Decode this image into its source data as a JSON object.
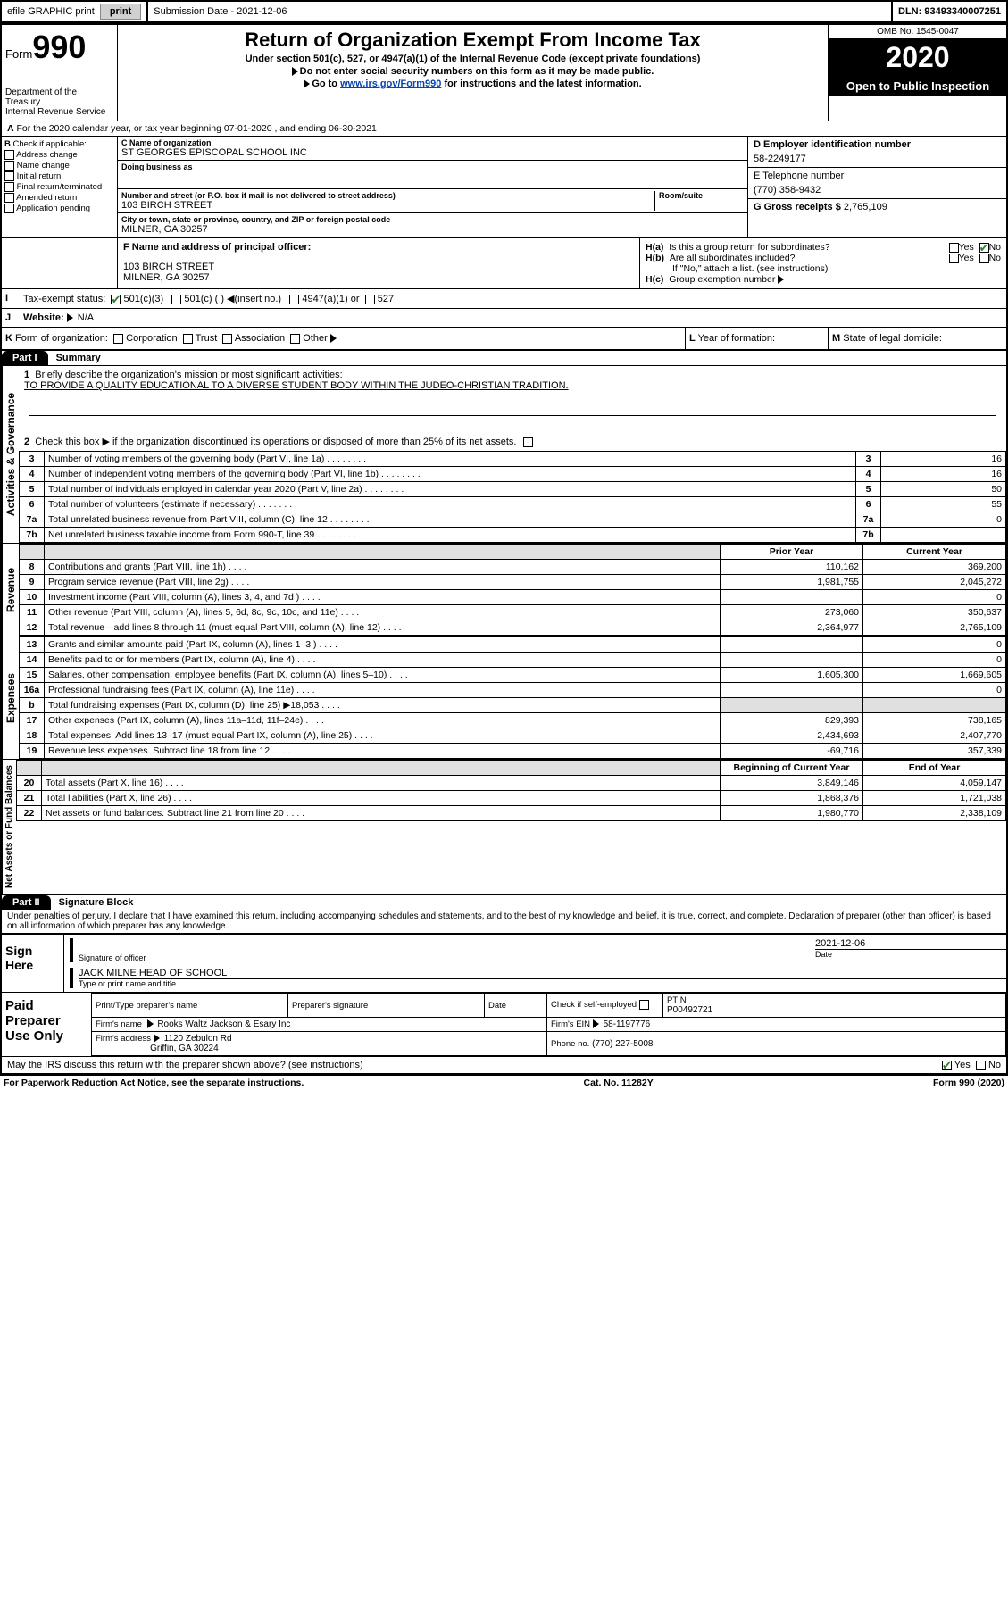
{
  "header": {
    "efile_label": "efile GRAPHIC print",
    "submission_label": "Submission Date - 2021-12-06",
    "dln_label": "DLN: 93493340007251"
  },
  "form_id": {
    "word": "Form",
    "number": "990",
    "dept": "Department of the Treasury",
    "irs": "Internal Revenue Service"
  },
  "title": {
    "main": "Return of Organization Exempt From Income Tax",
    "sub1": "Under section 501(c), 527, or 4947(a)(1) of the Internal Revenue Code (except private foundations)",
    "sub2": "Do not enter social security numbers on this form as it may be made public.",
    "sub3_pre": "Go to ",
    "sub3_link": "www.irs.gov/Form990",
    "sub3_post": " for instructions and the latest information.",
    "omb": "OMB No. 1545-0047",
    "year": "2020",
    "public": "Open to Public Inspection"
  },
  "period": "For the 2020 calendar year, or tax year beginning 07-01-2020    , and ending 06-30-2021",
  "check_if": {
    "label": "Check if applicable:",
    "items": [
      "Address change",
      "Name change",
      "Initial return",
      "Final return/terminated",
      "Amended return",
      "Application pending"
    ]
  },
  "org": {
    "name_label": "C Name of organization",
    "name": "ST GEORGES EPISCOPAL SCHOOL INC",
    "dba_label": "Doing business as",
    "addr_label": "Number and street (or P.O. box if mail is not delivered to street address)",
    "suite_label": "Room/suite",
    "addr": "103 BIRCH STREET",
    "city_label": "City or town, state or province, country, and ZIP or foreign postal code",
    "city": "MILNER, GA  30257"
  },
  "right": {
    "ein_label": "D Employer identification number",
    "ein": "58-2249177",
    "tel_label": "E Telephone number",
    "tel": "(770) 358-9432",
    "gross_label": "G Gross receipts $",
    "gross": "2,765,109"
  },
  "officer": {
    "label_f": "F  Name and address of principal officer:",
    "addr1": "103 BIRCH STREET",
    "addr2": "MILNER, GA  30257"
  },
  "h": {
    "ha": "Is this a group return for subordinates?",
    "hb": "Are all subordinates included?",
    "hb_note": "If \"No,\" attach a list. (see instructions)",
    "hc": "Group exemption number",
    "yes": "Yes",
    "no": "No"
  },
  "tax_status": {
    "label": "Tax-exempt status:",
    "c3": "501(c)(3)",
    "c_blank": "501(c) (   )",
    "insert": "(insert no.)",
    "a1": "4947(a)(1) or",
    "s527": "527"
  },
  "website_label": "Website:",
  "website": "N/A",
  "line_k": "Form of organization:",
  "k_opts": [
    "Corporation",
    "Trust",
    "Association",
    "Other"
  ],
  "line_l": "Year of formation:",
  "line_m": "State of legal domicile:",
  "part1": {
    "hdr": "Part I",
    "title": "Summary"
  },
  "part2": {
    "hdr": "Part II",
    "title": "Signature Block"
  },
  "summary": {
    "q1": "Briefly describe the organization's mission or most significant activities:",
    "mission": "TO PROVIDE A QUALITY EDUCATIONAL TO A DIVERSE STUDENT BODY WITHIN THE JUDEO-CHRISTIAN TRADITION.",
    "q2": "Check this box ▶       if the organization discontinued its operations or disposed of more than 25% of its net assets.",
    "rows_ag": [
      {
        "n": "3",
        "d": "Number of voting members of the governing body (Part VI, line 1a)",
        "v": "16"
      },
      {
        "n": "4",
        "d": "Number of independent voting members of the governing body (Part VI, line 1b)",
        "v": "16"
      },
      {
        "n": "5",
        "d": "Total number of individuals employed in calendar year 2020 (Part V, line 2a)",
        "v": "50"
      },
      {
        "n": "6",
        "d": "Total number of volunteers (estimate if necessary)",
        "v": "55"
      },
      {
        "n": "7a",
        "d": "Total unrelated business revenue from Part VIII, column (C), line 12",
        "v": "0"
      },
      {
        "n": "7b",
        "d": "Net unrelated business taxable income from Form 990-T, line 39",
        "v": ""
      }
    ],
    "col_prior": "Prior Year",
    "col_current": "Current Year",
    "col_begin": "Beginning of Current Year",
    "col_end": "End of Year",
    "revenue": [
      {
        "n": "8",
        "d": "Contributions and grants (Part VIII, line 1h)",
        "p": "110,162",
        "c": "369,200"
      },
      {
        "n": "9",
        "d": "Program service revenue (Part VIII, line 2g)",
        "p": "1,981,755",
        "c": "2,045,272"
      },
      {
        "n": "10",
        "d": "Investment income (Part VIII, column (A), lines 3, 4, and 7d )",
        "p": "",
        "c": "0"
      },
      {
        "n": "11",
        "d": "Other revenue (Part VIII, column (A), lines 5, 6d, 8c, 9c, 10c, and 11e)",
        "p": "273,060",
        "c": "350,637"
      },
      {
        "n": "12",
        "d": "Total revenue—add lines 8 through 11 (must equal Part VIII, column (A), line 12)",
        "p": "2,364,977",
        "c": "2,765,109"
      }
    ],
    "expenses": [
      {
        "n": "13",
        "d": "Grants and similar amounts paid (Part IX, column (A), lines 1–3 )",
        "p": "",
        "c": "0"
      },
      {
        "n": "14",
        "d": "Benefits paid to or for members (Part IX, column (A), line 4)",
        "p": "",
        "c": "0"
      },
      {
        "n": "15",
        "d": "Salaries, other compensation, employee benefits (Part IX, column (A), lines 5–10)",
        "p": "1,605,300",
        "c": "1,669,605"
      },
      {
        "n": "16a",
        "d": "Professional fundraising fees (Part IX, column (A), line 11e)",
        "p": "",
        "c": "0"
      },
      {
        "n": "b",
        "d": "Total fundraising expenses (Part IX, column (D), line 25) ▶18,053",
        "p": "GRAY",
        "c": "GRAY"
      },
      {
        "n": "17",
        "d": "Other expenses (Part IX, column (A), lines 11a–11d, 11f–24e)",
        "p": "829,393",
        "c": "738,165"
      },
      {
        "n": "18",
        "d": "Total expenses. Add lines 13–17 (must equal Part IX, column (A), line 25)",
        "p": "2,434,693",
        "c": "2,407,770"
      },
      {
        "n": "19",
        "d": "Revenue less expenses. Subtract line 18 from line 12",
        "p": "-69,716",
        "c": "357,339"
      }
    ],
    "netassets": [
      {
        "n": "20",
        "d": "Total assets (Part X, line 16)",
        "p": "3,849,146",
        "c": "4,059,147"
      },
      {
        "n": "21",
        "d": "Total liabilities (Part X, line 26)",
        "p": "1,868,376",
        "c": "1,721,038"
      },
      {
        "n": "22",
        "d": "Net assets or fund balances. Subtract line 21 from line 20",
        "p": "1,980,770",
        "c": "2,338,109"
      }
    ],
    "vlabels": {
      "ag": "Activities & Governance",
      "rev": "Revenue",
      "exp": "Expenses",
      "na": "Net Assets or Fund Balances"
    }
  },
  "sig": {
    "perjury": "Under penalties of perjury, I declare that I have examined this return, including accompanying schedules and statements, and to the best of my knowledge and belief, it is true, correct, and complete. Declaration of preparer (other than officer) is based on all information of which preparer has any knowledge.",
    "sign_here": "Sign Here",
    "sig_officer": "Signature of officer",
    "date_label": "Date",
    "sig_date": "2021-12-06",
    "officer_name": "JACK MILNE  HEAD OF SCHOOL",
    "type_name": "Type or print name and title"
  },
  "preparer": {
    "label": "Paid Preparer Use Only",
    "print_name": "Print/Type preparer's name",
    "prep_sig": "Preparer's signature",
    "date": "Date",
    "check_self": "Check        if self-employed",
    "ptin_label": "PTIN",
    "ptin": "P00492721",
    "firm_name_label": "Firm's name",
    "firm_name": "Rooks Waltz Jackson & Esary Inc",
    "firm_ein_label": "Firm's EIN",
    "firm_ein": "58-1197776",
    "firm_addr_label": "Firm's address",
    "firm_addr1": "1120 Zebulon Rd",
    "firm_addr2": "Griffin, GA  30224",
    "phone_label": "Phone no.",
    "phone": "(770) 227-5008"
  },
  "discuss": "May the IRS discuss this return with the preparer shown above? (see instructions)",
  "footer": {
    "paperwork": "For Paperwork Reduction Act Notice, see the separate instructions.",
    "cat": "Cat. No. 11282Y",
    "form": "Form 990 (2020)"
  }
}
